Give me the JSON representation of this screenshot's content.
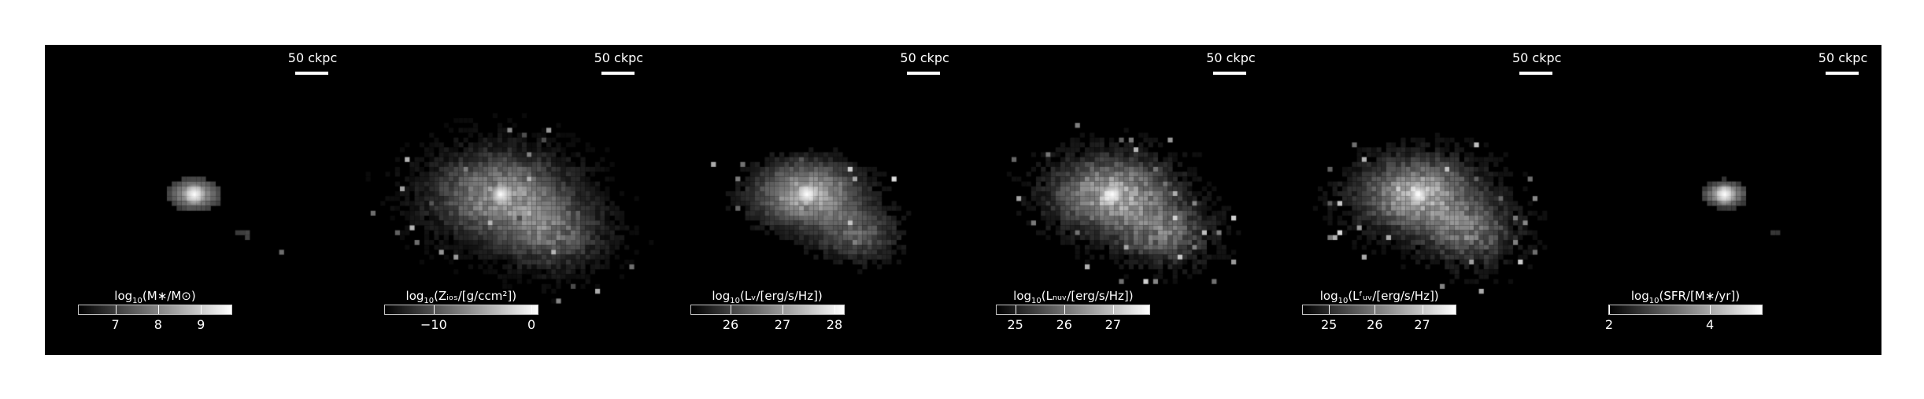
{
  "figure": {
    "panels": [
      {
        "id": "stellar-mass",
        "scalebar_label": "50 ckpc",
        "colorbar": {
          "label_pre": "log",
          "label_sub": "10",
          "label_post": "(M∗/M⊙)",
          "ticks": [
            "7",
            "8",
            "9"
          ],
          "tick_frac": [
            0.24,
            0.52,
            0.8
          ]
        },
        "render": {
          "spread": 0.55,
          "noise": 0.06,
          "clip": 0.25,
          "secondary": 0.55,
          "peak": 1.0
        }
      },
      {
        "id": "metallicity",
        "scalebar_label": "50 ckpc",
        "colorbar": {
          "label_pre": "log",
          "label_sub": "10",
          "label_post": "(Zᵢₒₛ/[g/ccm²])",
          "ticks": [
            "−10",
            "0"
          ],
          "tick_frac": [
            0.32,
            0.96
          ]
        },
        "render": {
          "spread": 1.25,
          "noise": 0.35,
          "clip": 0.05,
          "secondary": 0.95,
          "peak": 0.85
        }
      },
      {
        "id": "luminosity-v",
        "scalebar_label": "50 ckpc",
        "colorbar": {
          "label_pre": "log",
          "label_sub": "10",
          "label_post": "(Lᵥ/[erg/s/Hz])",
          "ticks": [
            "26",
            "27",
            "28"
          ],
          "tick_frac": [
            0.26,
            0.6,
            0.94
          ]
        },
        "render": {
          "spread": 1.0,
          "noise": 0.25,
          "clip": 0.08,
          "secondary": 0.75,
          "peak": 1.0
        }
      },
      {
        "id": "luminosity-nuv",
        "scalebar_label": "50 ckpc",
        "colorbar": {
          "label_pre": "log",
          "label_sub": "10",
          "label_post": "(Lₙᵤᵥ/[erg/s/Hz])",
          "ticks": [
            "25",
            "26",
            "27"
          ],
          "tick_frac": [
            0.12,
            0.44,
            0.76
          ]
        },
        "render": {
          "spread": 1.1,
          "noise": 0.35,
          "clip": 0.06,
          "secondary": 0.85,
          "peak": 1.0
        }
      },
      {
        "id": "luminosity-fuv",
        "scalebar_label": "50 ckpc",
        "colorbar": {
          "label_pre": "log",
          "label_sub": "10",
          "label_post": "(Lᶠᵤᵥ/[erg/s/Hz])",
          "ticks": [
            "25",
            "26",
            "27"
          ],
          "tick_frac": [
            0.17,
            0.47,
            0.78
          ]
        },
        "render": {
          "spread": 1.1,
          "noise": 0.35,
          "clip": 0.06,
          "secondary": 0.85,
          "peak": 1.0
        }
      },
      {
        "id": "sfr",
        "scalebar_label": "50 ckpc",
        "colorbar": {
          "label_pre": "log",
          "label_sub": "10",
          "label_post": "(SFR/[M∗/yr])",
          "ticks": [
            "2",
            "4"
          ],
          "tick_frac": [
            0.0,
            0.66
          ]
        },
        "render": {
          "spread": 0.45,
          "noise": 0.1,
          "clip": 0.22,
          "secondary": 0.45,
          "peak": 1.0
        }
      }
    ]
  }
}
